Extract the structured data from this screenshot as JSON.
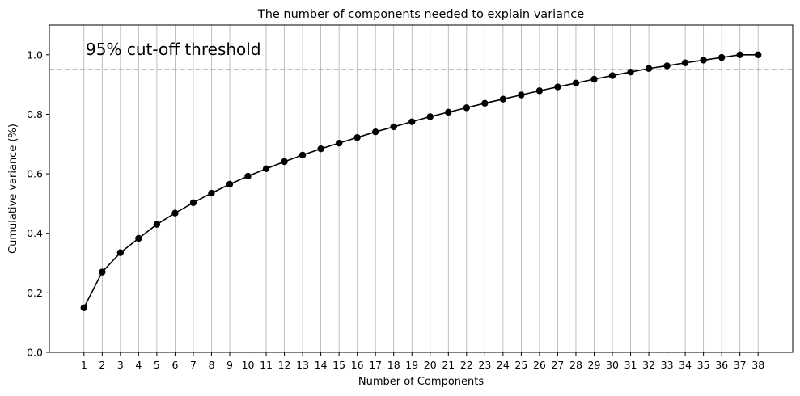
{
  "chart_data": {
    "type": "line",
    "title": "The number of components needed to explain variance",
    "xlabel": "Number of Components",
    "ylabel": "Cumulative variance (%)",
    "x": [
      1,
      2,
      3,
      4,
      5,
      6,
      7,
      8,
      9,
      10,
      11,
      12,
      13,
      14,
      15,
      16,
      17,
      18,
      19,
      20,
      21,
      22,
      23,
      24,
      25,
      26,
      27,
      28,
      29,
      30,
      31,
      32,
      33,
      34,
      35,
      36,
      37,
      38
    ],
    "series": [
      {
        "values": [
          0.15,
          0.27,
          0.335,
          0.383,
          0.43,
          0.468,
          0.503,
          0.535,
          0.565,
          0.592,
          0.617,
          0.641,
          0.663,
          0.684,
          0.703,
          0.722,
          0.741,
          0.758,
          0.775,
          0.792,
          0.807,
          0.822,
          0.837,
          0.851,
          0.865,
          0.879,
          0.892,
          0.905,
          0.918,
          0.93,
          0.942,
          0.954,
          0.963,
          0.973,
          0.982,
          0.991,
          1.0,
          1.0
        ],
        "color": "#000000",
        "marker": "circle"
      }
    ],
    "yticks": [
      "0.0",
      "0.2",
      "0.4",
      "0.6",
      "0.8",
      "1.0"
    ],
    "ylim": [
      0,
      1.1
    ],
    "xlim": [
      -0.9,
      39.9
    ],
    "threshold": {
      "y": 0.95,
      "label": "95% cut-off threshold",
      "color": "#808080",
      "style": "dashed"
    },
    "grid": "vertical lines at x ticks",
    "grid_color": "#b0b0b0"
  }
}
